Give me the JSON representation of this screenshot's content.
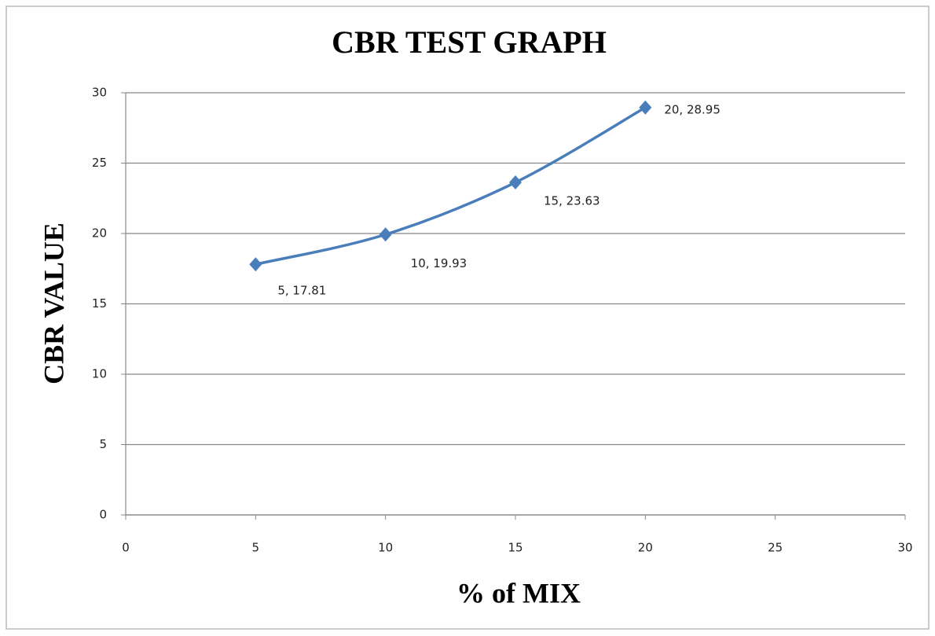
{
  "chart_data": {
    "type": "line",
    "smooth": true,
    "title": "CBR TEST GRAPH",
    "x_label": "% of MIX",
    "y_label": "CBR VALUE",
    "x": [
      5,
      10,
      15,
      20
    ],
    "series": [
      {
        "color": "#4a7ebb",
        "values": [
          17.81,
          19.93,
          23.63,
          28.95
        ],
        "value_labels": [
          "5, 17.81",
          "10, 19.93",
          "15, 23.63",
          "20, 28.95"
        ]
      }
    ],
    "xlim": [
      0,
      30
    ],
    "xticks": [
      0,
      5,
      10,
      15,
      20,
      25,
      30
    ],
    "ylim": [
      0,
      30
    ],
    "yticks": [
      0,
      5,
      10,
      15,
      20,
      25,
      30
    ],
    "grid": true,
    "marker": "diamond"
  }
}
